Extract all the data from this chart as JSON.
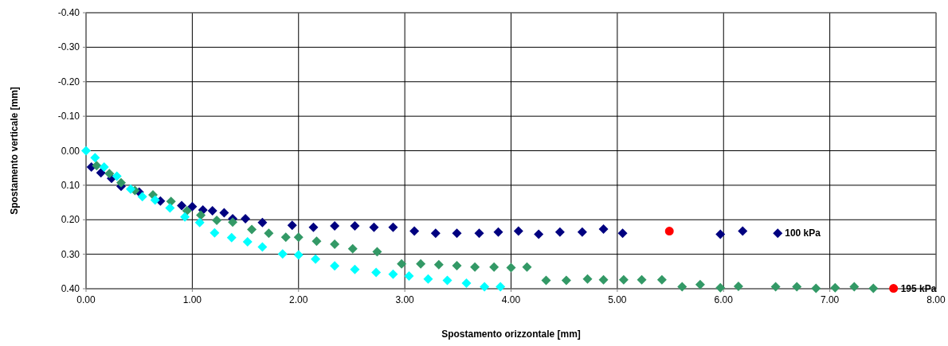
{
  "chart_data": {
    "type": "scatter",
    "xlabel": "Spostamento orizzontale  [mm]",
    "ylabel": "Spostamento verticale  [mm]",
    "xlim": [
      0,
      8
    ],
    "ylim": [
      0.4,
      -0.4
    ],
    "xticks": [
      {
        "value": 0,
        "label": "0.00"
      },
      {
        "value": 1,
        "label": "1.00"
      },
      {
        "value": 2,
        "label": "2.00"
      },
      {
        "value": 3,
        "label": "3.00"
      },
      {
        "value": 4,
        "label": "4.00"
      },
      {
        "value": 5,
        "label": "5.00"
      },
      {
        "value": 6,
        "label": "6.00"
      },
      {
        "value": 7,
        "label": "7.00"
      },
      {
        "value": 8,
        "label": "8.00"
      }
    ],
    "yticks": [
      {
        "value": -0.4,
        "label": "-0.40"
      },
      {
        "value": -0.3,
        "label": "-0.30"
      },
      {
        "value": -0.2,
        "label": "-0.20"
      },
      {
        "value": -0.1,
        "label": "-0.10"
      },
      {
        "value": 0,
        "label": "0.00"
      },
      {
        "value": 0.1,
        "label": "0.10"
      },
      {
        "value": 0.2,
        "label": "0.20"
      },
      {
        "value": 0.3,
        "label": "0.30"
      },
      {
        "value": 0.4,
        "label": "0.40"
      }
    ],
    "grid": true,
    "marker": "diamond",
    "series": [
      {
        "name": "100 kPa",
        "color": "#000080",
        "x": [
          0.05,
          0.14,
          0.24,
          0.33,
          0.47,
          0.5,
          0.61,
          0.7,
          0.9,
          1.0,
          1.1,
          1.19,
          1.3,
          1.38,
          1.5,
          1.66,
          1.94,
          2.14,
          2.34,
          2.53,
          2.71,
          2.89,
          3.09,
          3.29,
          3.49,
          3.7,
          3.88,
          4.07,
          4.26,
          4.46,
          4.67,
          4.87,
          5.05,
          5.97,
          6.18,
          6.51
        ],
        "values": [
          0.047,
          0.064,
          0.08,
          0.103,
          null,
          0.12,
          null,
          0.146,
          0.159,
          0.162,
          0.172,
          0.174,
          0.18,
          0.197,
          0.197,
          0.208,
          0.216,
          0.222,
          0.218,
          0.218,
          0.222,
          0.222,
          0.233,
          0.239,
          0.239,
          0.239,
          0.236,
          0.233,
          0.242,
          0.236,
          0.236,
          0.227,
          0.239,
          0.242,
          0.233,
          0.239
        ]
      },
      {
        "name": "195 kPa",
        "color": "#339966",
        "x": [
          0.1,
          0.22,
          0.33,
          0.46,
          0.63,
          0.8,
          0.95,
          1.08,
          1.23,
          1.38,
          1.56,
          1.72,
          1.88,
          2.0,
          2.17,
          2.34,
          2.51,
          2.74,
          2.97,
          3.15,
          3.32,
          3.49,
          3.66,
          3.84,
          4.0,
          4.15,
          4.33,
          4.52,
          4.72,
          4.87,
          5.06,
          5.23,
          5.42,
          5.61,
          5.78,
          5.97,
          6.14,
          6.49,
          6.69,
          6.87,
          7.05,
          7.23,
          7.41
        ],
        "values": [
          0.043,
          0.066,
          0.093,
          0.115,
          0.128,
          0.147,
          0.174,
          0.187,
          0.202,
          0.207,
          0.228,
          0.239,
          0.251,
          0.251,
          0.262,
          0.271,
          0.284,
          0.293,
          0.328,
          0.328,
          0.33,
          0.333,
          0.337,
          0.337,
          0.339,
          0.337,
          0.376,
          0.376,
          0.372,
          0.374,
          0.374,
          0.374,
          0.374,
          0.394,
          0.388,
          0.397,
          0.393,
          0.394,
          0.394,
          0.399,
          0.397,
          0.394,
          0.399
        ]
      },
      {
        "color": "#00ffff",
        "x": [
          0.0,
          0.085,
          0.17,
          0.29,
          0.42,
          0.53,
          0.65,
          0.79,
          0.93,
          1.07,
          1.21,
          1.37,
          1.52,
          1.66,
          1.85,
          2.0,
          2.16,
          2.34,
          2.53,
          2.73,
          2.89,
          3.04,
          3.22,
          3.4,
          3.58,
          3.75,
          3.9
        ],
        "values": [
          0.0,
          0.02,
          0.047,
          0.074,
          0.111,
          0.133,
          0.143,
          0.166,
          0.192,
          0.208,
          0.238,
          0.252,
          0.264,
          0.279,
          0.299,
          0.302,
          0.314,
          0.334,
          0.344,
          0.353,
          0.358,
          0.363,
          0.372,
          0.376,
          0.384,
          0.394,
          0.394
        ]
      },
      {
        "color": "#ff0000",
        "marker": "circle",
        "x": [
          5.49,
          7.6
        ],
        "values": [
          0.233,
          0.399
        ]
      }
    ]
  }
}
